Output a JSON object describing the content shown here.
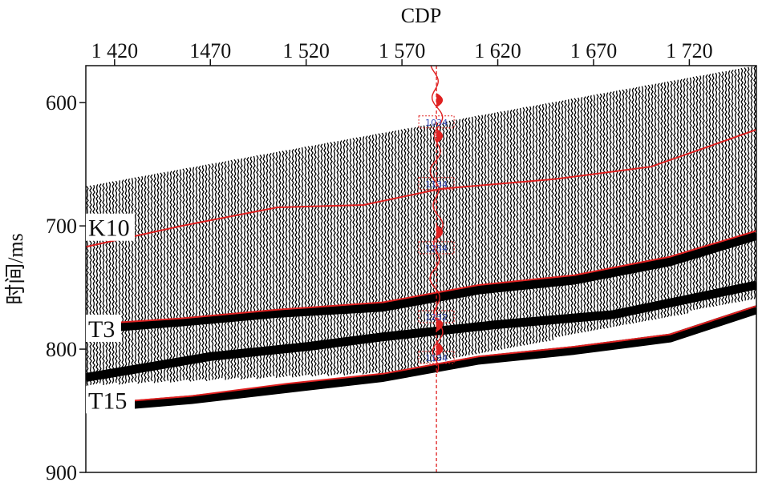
{
  "chart_data": {
    "type": "seismic-section",
    "x_title": "CDP",
    "y_title": "时间/ms",
    "x_ticks": [
      1420,
      1470,
      1520,
      1570,
      1620,
      1670,
      1720
    ],
    "x_tick_labels": [
      "1 420",
      "1470",
      "1 520",
      "1 570",
      "1 620",
      "1 670",
      "1 720"
    ],
    "xlim": [
      1405,
      1755
    ],
    "y_ticks": [
      600,
      700,
      800,
      900
    ],
    "y_tick_labels": [
      "600",
      "700",
      "800",
      "900"
    ],
    "ylim": [
      570,
      900
    ],
    "section_top": [
      [
        1405,
        668
      ],
      [
        1755,
        570
      ]
    ],
    "section_bottom": [
      [
        1405,
        830
      ],
      [
        1560,
        820
      ],
      [
        1755,
        760
      ]
    ],
    "horizons": [
      {
        "name": "K10",
        "points": [
          [
            1405,
            717
          ],
          [
            1455,
            700
          ],
          [
            1505,
            685
          ],
          [
            1550,
            683
          ],
          [
            1590,
            670
          ],
          [
            1650,
            662
          ],
          [
            1700,
            652
          ],
          [
            1755,
            622
          ]
        ]
      },
      {
        "name": "T3",
        "points": [
          [
            1405,
            780
          ],
          [
            1455,
            775
          ],
          [
            1505,
            768
          ],
          [
            1560,
            762
          ],
          [
            1610,
            748
          ],
          [
            1660,
            740
          ],
          [
            1710,
            725
          ],
          [
            1755,
            704
          ]
        ]
      },
      {
        "name": "T15",
        "points": [
          [
            1405,
            845
          ],
          [
            1460,
            838
          ],
          [
            1510,
            828
          ],
          [
            1560,
            820
          ],
          [
            1610,
            806
          ],
          [
            1660,
            798
          ],
          [
            1710,
            788
          ],
          [
            1755,
            765
          ]
        ]
      }
    ],
    "strong_events": [
      {
        "points": [
          [
            1405,
            784
          ],
          [
            1455,
            778
          ],
          [
            1505,
            771
          ],
          [
            1560,
            766
          ],
          [
            1610,
            752
          ],
          [
            1660,
            744
          ],
          [
            1710,
            729
          ],
          [
            1755,
            708
          ]
        ]
      },
      {
        "points": [
          [
            1405,
            823
          ],
          [
            1470,
            806
          ],
          [
            1520,
            798
          ],
          [
            1560,
            790
          ],
          [
            1620,
            780
          ],
          [
            1680,
            772
          ],
          [
            1755,
            748
          ]
        ]
      },
      {
        "points": [
          [
            1405,
            848
          ],
          [
            1460,
            841
          ],
          [
            1510,
            832
          ],
          [
            1560,
            823
          ],
          [
            1610,
            809
          ],
          [
            1660,
            801
          ],
          [
            1710,
            791
          ],
          [
            1755,
            768
          ]
        ]
      }
    ],
    "well": {
      "cdp": 1588,
      "labels": [
        {
          "text": "1034",
          "time": 616
        },
        {
          "text": "1134",
          "time": 666
        },
        {
          "text": "1234",
          "time": 718
        },
        {
          "text": "1232",
          "time": 774
        },
        {
          "text": "1134",
          "time": 807
        }
      ]
    },
    "colors": {
      "horizon": "#e02020",
      "trace": "#000000",
      "well_label": "#3b4fb8"
    }
  }
}
